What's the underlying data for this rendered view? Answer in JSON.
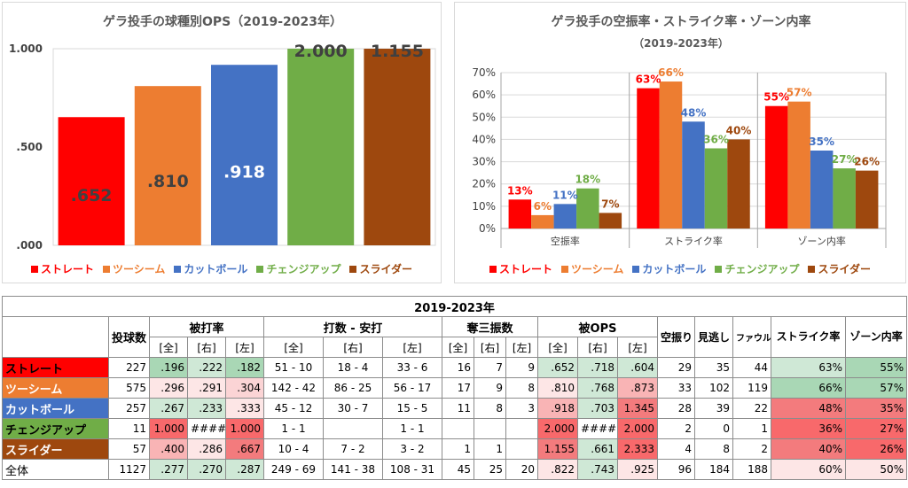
{
  "colors": {
    "straight": "#ff0000",
    "twoseam": "#ed7d31",
    "cutter": "#4472c4",
    "changeup": "#70ad47",
    "slider": "#9e480e",
    "label_dark": "#404040"
  },
  "legend": [
    "ストレート",
    "ツーシーム",
    "カットボール",
    "チェンジアップ",
    "スライダー"
  ],
  "chart_data": [
    {
      "type": "bar",
      "title": "ゲラ投手の球種別OPS（2019-2023年）",
      "categories": [
        "ストレート",
        "ツーシーム",
        "カットボール",
        "チェンジアップ",
        "スライダー"
      ],
      "values": [
        0.652,
        0.81,
        0.918,
        2.0,
        1.155
      ],
      "value_labels": [
        ".652",
        ".810",
        ".918",
        "2.000",
        "1.155"
      ],
      "ylim": [
        0,
        1.0
      ],
      "yticks": [
        ".000",
        ".500",
        "1.000"
      ]
    },
    {
      "type": "bar",
      "title": "ゲラ投手の空振率・ストライク率・ゾーン内率",
      "subtitle": "（2019-2023年）",
      "categories": [
        "空振率",
        "ストライク率",
        "ゾーン内率"
      ],
      "series": [
        {
          "name": "ストレート",
          "values": [
            13,
            63,
            55
          ]
        },
        {
          "name": "ツーシーム",
          "values": [
            6,
            66,
            57
          ]
        },
        {
          "name": "カットボール",
          "values": [
            11,
            48,
            35
          ]
        },
        {
          "name": "チェンジアップ",
          "values": [
            18,
            36,
            27
          ]
        },
        {
          "name": "スライダー",
          "values": [
            7,
            40,
            26
          ]
        }
      ],
      "ylim": [
        0,
        70
      ],
      "yticks": [
        "0%",
        "10%",
        "20%",
        "30%",
        "40%",
        "50%",
        "60%",
        "70%"
      ]
    }
  ],
  "table": {
    "title": "2019-2023年",
    "headers": {
      "pitches": "投球数",
      "avg": "被打率",
      "ab_h": "打数 - 安打",
      "so": "奪三振数",
      "ops": "被OPS",
      "swstr": "空振り",
      "look": "見逃し",
      "foul": "ファウル",
      "strike": "ストライク率",
      "zone": "ゾーン内率",
      "all": "[全]",
      "right": "[右]",
      "left": "[左]"
    },
    "rows": [
      {
        "name": "ストレート",
        "pitches": "227",
        "avg": [
          ".196",
          ".222",
          ".182"
        ],
        "abh": [
          "51 - 10",
          "18 - 4",
          "33 - 6"
        ],
        "so": [
          "16",
          "7",
          "9"
        ],
        "ops": [
          ".652",
          ".718",
          ".604"
        ],
        "swstr": "29",
        "look": "35",
        "foul": "44",
        "strike": "63%",
        "zone": "55%"
      },
      {
        "name": "ツーシーム",
        "pitches": "575",
        "avg": [
          ".296",
          ".291",
          ".304"
        ],
        "abh": [
          "142 - 42",
          "86 - 25",
          "56 - 17"
        ],
        "so": [
          "17",
          "9",
          "8"
        ],
        "ops": [
          ".810",
          ".768",
          ".873"
        ],
        "swstr": "33",
        "look": "102",
        "foul": "119",
        "strike": "66%",
        "zone": "57%"
      },
      {
        "name": "カットボール",
        "pitches": "257",
        "avg": [
          ".267",
          ".233",
          ".333"
        ],
        "abh": [
          "45 - 12",
          "30 - 7",
          "15 - 5"
        ],
        "so": [
          "11",
          "8",
          "3"
        ],
        "ops": [
          ".918",
          ".703",
          "1.345"
        ],
        "swstr": "28",
        "look": "39",
        "foul": "22",
        "strike": "48%",
        "zone": "35%"
      },
      {
        "name": "チェンジアップ",
        "pitches": "11",
        "avg": [
          "1.000",
          "####",
          "1.000"
        ],
        "abh": [
          "1 - 1",
          "",
          "1 - 1"
        ],
        "so": [
          "",
          "",
          ""
        ],
        "ops": [
          "2.000",
          "####",
          "2.000"
        ],
        "swstr": "2",
        "look": "0",
        "foul": "1",
        "strike": "36%",
        "zone": "27%"
      },
      {
        "name": "スライダー",
        "pitches": "57",
        "avg": [
          ".400",
          ".286",
          ".667"
        ],
        "abh": [
          "10 - 4",
          "7 - 2",
          "3 - 2"
        ],
        "so": [
          "1",
          "1",
          ""
        ],
        "ops": [
          "1.155",
          ".661",
          "2.333"
        ],
        "swstr": "4",
        "look": "8",
        "foul": "2",
        "strike": "40%",
        "zone": "26%"
      },
      {
        "name": "全体",
        "pitches": "1127",
        "avg": [
          ".277",
          ".270",
          ".287"
        ],
        "abh": [
          "249 - 69",
          "141 - 38",
          "108 - 31"
        ],
        "so": [
          "45",
          "25",
          "20"
        ],
        "ops": [
          ".822",
          ".743",
          ".925"
        ],
        "swstr": "96",
        "look": "184",
        "foul": "188",
        "strike": "60%",
        "zone": "50%"
      }
    ]
  }
}
